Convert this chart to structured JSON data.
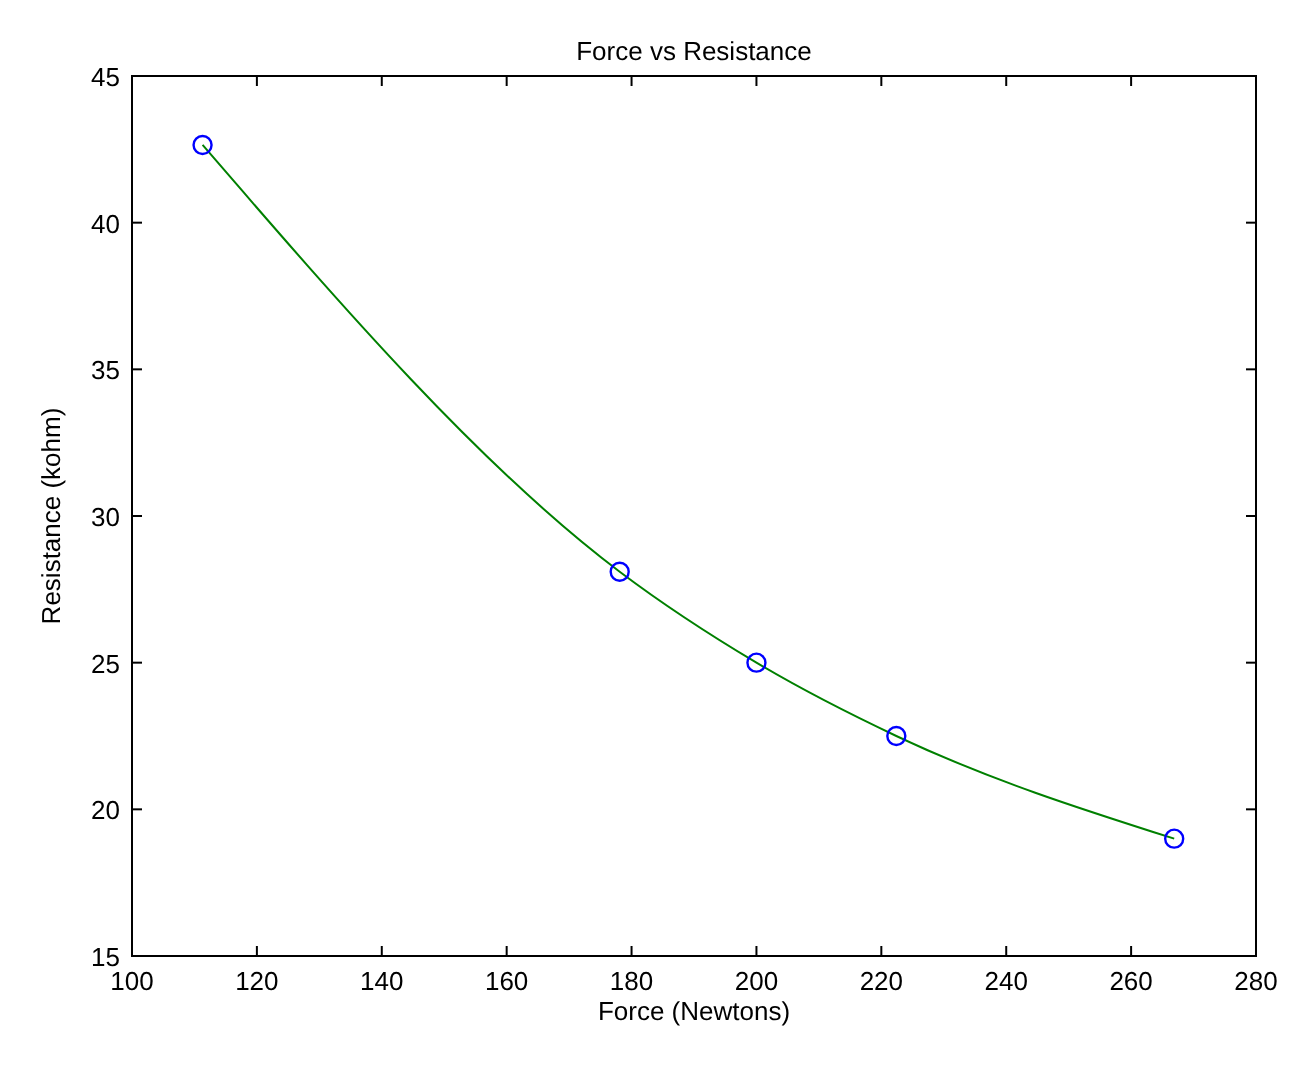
{
  "chart_data": {
    "type": "line",
    "title": "Force vs Resistance",
    "xlabel": "Force (Newtons)",
    "ylabel": "Resistance (kohm)",
    "x": [
      111.3,
      178.1,
      200,
      222.4,
      266.9
    ],
    "series": [
      {
        "color": "#008000",
        "values": [
          42.65,
          28.1,
          25.0,
          22.5,
          19.0
        ],
        "marker": "none"
      },
      {
        "type": "scatter",
        "color": "#0000ff",
        "values": [
          42.65,
          28.1,
          25.0,
          22.5,
          19.0
        ],
        "marker": "circle"
      }
    ],
    "xlim": [
      100,
      280
    ],
    "xticks": [
      100,
      120,
      140,
      160,
      180,
      200,
      220,
      240,
      260,
      280
    ],
    "ylim": [
      15,
      45
    ],
    "yticks": [
      15,
      20,
      25,
      30,
      35,
      40,
      45
    ],
    "grid": false
  }
}
